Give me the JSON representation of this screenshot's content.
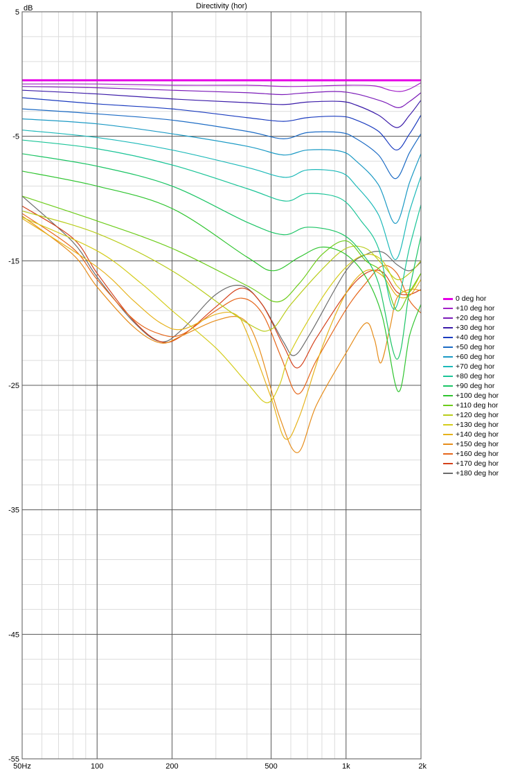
{
  "chart_data": {
    "type": "line",
    "title": "Directivity (hor)",
    "ylabel": "dB",
    "xlabel": "",
    "xscale": "log",
    "xlim": [
      50,
      2000
    ],
    "ylim": [
      -55,
      5
    ],
    "xticks": [
      {
        "value": 50,
        "label": "50Hz"
      },
      {
        "value": 100,
        "label": "100"
      },
      {
        "value": 200,
        "label": "200"
      },
      {
        "value": 500,
        "label": "500"
      },
      {
        "value": 1000,
        "label": "1k"
      },
      {
        "value": 2000,
        "label": "2k"
      }
    ],
    "yticks": [
      {
        "value": 5,
        "label": "5"
      },
      {
        "value": -5,
        "label": "-5"
      },
      {
        "value": -15,
        "label": "-15"
      },
      {
        "value": -25,
        "label": "-25"
      },
      {
        "value": -35,
        "label": "-35"
      },
      {
        "value": -45,
        "label": "-45"
      },
      {
        "value": -55,
        "label": "-55"
      }
    ],
    "grid": true,
    "legend_position": "right",
    "series": [
      {
        "name": "0 deg hor",
        "color": "#e600e6",
        "bold": true,
        "points": [
          [
            50,
            -0.5
          ],
          [
            2000,
            -0.5
          ]
        ]
      },
      {
        "name": "+10 deg hor",
        "color": "#a11fc7",
        "points": [
          [
            50,
            -0.8
          ],
          [
            100,
            -0.8
          ],
          [
            200,
            -0.9
          ],
          [
            400,
            -0.9
          ],
          [
            600,
            -1.0
          ],
          [
            1000,
            -0.9
          ],
          [
            1300,
            -0.95
          ],
          [
            1500,
            -1.3
          ],
          [
            1650,
            -1.4
          ],
          [
            1800,
            -1.2
          ],
          [
            2000,
            -0.7
          ]
        ]
      },
      {
        "name": "+20 deg hor",
        "color": "#7a1ab8",
        "points": [
          [
            50,
            -1.0
          ],
          [
            100,
            -1.1
          ],
          [
            200,
            -1.3
          ],
          [
            400,
            -1.5
          ],
          [
            550,
            -1.65
          ],
          [
            650,
            -1.55
          ],
          [
            900,
            -1.4
          ],
          [
            1100,
            -1.6
          ],
          [
            1400,
            -2.2
          ],
          [
            1620,
            -2.7
          ],
          [
            1800,
            -2.2
          ],
          [
            2000,
            -1.5
          ]
        ]
      },
      {
        "name": "+30 deg hor",
        "color": "#3a1aa8",
        "points": [
          [
            50,
            -1.3
          ],
          [
            100,
            -1.6
          ],
          [
            200,
            -2.0
          ],
          [
            400,
            -2.3
          ],
          [
            560,
            -2.45
          ],
          [
            700,
            -2.25
          ],
          [
            950,
            -2.2
          ],
          [
            1100,
            -2.5
          ],
          [
            1350,
            -3.3
          ],
          [
            1600,
            -4.3
          ],
          [
            1800,
            -3.3
          ],
          [
            2000,
            -2.1
          ]
        ]
      },
      {
        "name": "+40 deg hor",
        "color": "#1a3bbf",
        "points": [
          [
            50,
            -1.9
          ],
          [
            100,
            -2.4
          ],
          [
            200,
            -2.8
          ],
          [
            400,
            -3.5
          ],
          [
            560,
            -3.8
          ],
          [
            700,
            -3.5
          ],
          [
            950,
            -3.4
          ],
          [
            1100,
            -3.7
          ],
          [
            1350,
            -4.6
          ],
          [
            1590,
            -6.1
          ],
          [
            1800,
            -4.8
          ],
          [
            2000,
            -3.3
          ]
        ]
      },
      {
        "name": "+50 deg hor",
        "color": "#1a6ac4",
        "points": [
          [
            50,
            -2.8
          ],
          [
            100,
            -3.2
          ],
          [
            200,
            -3.7
          ],
          [
            400,
            -4.6
          ],
          [
            560,
            -5.2
          ],
          [
            700,
            -4.7
          ],
          [
            950,
            -4.7
          ],
          [
            1100,
            -5.2
          ],
          [
            1350,
            -6.5
          ],
          [
            1580,
            -8.4
          ],
          [
            1800,
            -6.3
          ],
          [
            2000,
            -4.8
          ]
        ]
      },
      {
        "name": "+60 deg hor",
        "color": "#1a99c4",
        "points": [
          [
            50,
            -3.6
          ],
          [
            100,
            -4.0
          ],
          [
            200,
            -4.8
          ],
          [
            400,
            -5.8
          ],
          [
            560,
            -6.5
          ],
          [
            700,
            -6.1
          ],
          [
            950,
            -6.2
          ],
          [
            1100,
            -7.0
          ],
          [
            1350,
            -8.9
          ],
          [
            1580,
            -12.0
          ],
          [
            1800,
            -8.7
          ],
          [
            2000,
            -6.4
          ]
        ]
      },
      {
        "name": "+70 deg hor",
        "color": "#1ab8b8",
        "points": [
          [
            50,
            -4.5
          ],
          [
            100,
            -5.1
          ],
          [
            200,
            -6.1
          ],
          [
            400,
            -7.5
          ],
          [
            570,
            -8.3
          ],
          [
            700,
            -7.7
          ],
          [
            950,
            -7.9
          ],
          [
            1100,
            -9.0
          ],
          [
            1350,
            -11.3
          ],
          [
            1580,
            -14.9
          ],
          [
            1800,
            -11.0
          ],
          [
            2000,
            -8.2
          ]
        ]
      },
      {
        "name": "+80 deg hor",
        "color": "#1ac497",
        "points": [
          [
            50,
            -5.3
          ],
          [
            100,
            -6.0
          ],
          [
            200,
            -7.3
          ],
          [
            400,
            -9.2
          ],
          [
            570,
            -10.2
          ],
          [
            700,
            -9.6
          ],
          [
            950,
            -10.0
          ],
          [
            1150,
            -11.8
          ],
          [
            1350,
            -14.0
          ],
          [
            1560,
            -18.9
          ],
          [
            1800,
            -13.9
          ],
          [
            2000,
            -10.5
          ]
        ]
      },
      {
        "name": "+90 deg hor",
        "color": "#1ac464",
        "points": [
          [
            50,
            -6.4
          ],
          [
            100,
            -7.4
          ],
          [
            200,
            -9.0
          ],
          [
            400,
            -11.9
          ],
          [
            560,
            -12.9
          ],
          [
            700,
            -12.3
          ],
          [
            950,
            -12.8
          ],
          [
            1150,
            -14.3
          ],
          [
            1350,
            -16.8
          ],
          [
            1600,
            -22.9
          ],
          [
            1800,
            -17.3
          ],
          [
            2000,
            -13.0
          ]
        ]
      },
      {
        "name": "+100 deg hor",
        "color": "#2ec42e",
        "points": [
          [
            50,
            -7.8
          ],
          [
            100,
            -9.0
          ],
          [
            200,
            -10.8
          ],
          [
            400,
            -14.7
          ],
          [
            510,
            -15.8
          ],
          [
            650,
            -14.7
          ],
          [
            800,
            -13.9
          ],
          [
            1000,
            -14.5
          ],
          [
            1200,
            -16.3
          ],
          [
            1400,
            -19.5
          ],
          [
            1620,
            -25.5
          ],
          [
            1800,
            -21.0
          ],
          [
            2000,
            -18.5
          ]
        ]
      },
      {
        "name": "+110 deg hor",
        "color": "#6ccc1a",
        "points": [
          [
            50,
            -9.8
          ],
          [
            100,
            -11.8
          ],
          [
            200,
            -14.0
          ],
          [
            400,
            -17.0
          ],
          [
            530,
            -18.3
          ],
          [
            650,
            -16.8
          ],
          [
            800,
            -14.5
          ],
          [
            1000,
            -13.4
          ],
          [
            1200,
            -15.0
          ],
          [
            1400,
            -16.0
          ],
          [
            1600,
            -19.0
          ],
          [
            1800,
            -17.5
          ],
          [
            2000,
            -16.0
          ]
        ]
      },
      {
        "name": "+120 deg hor",
        "color": "#b8cc1a",
        "points": [
          [
            50,
            -11.0
          ],
          [
            100,
            -12.8
          ],
          [
            200,
            -15.8
          ],
          [
            400,
            -20.0
          ],
          [
            500,
            -20.5
          ],
          [
            600,
            -18.5
          ],
          [
            800,
            -15.7
          ],
          [
            1000,
            -14.0
          ],
          [
            1200,
            -14.0
          ],
          [
            1400,
            -15.3
          ],
          [
            1600,
            -16.5
          ],
          [
            1800,
            -16.0
          ],
          [
            2000,
            -15.0
          ]
        ]
      },
      {
        "name": "+130 deg hor",
        "color": "#d4cc1a",
        "points": [
          [
            50,
            -11.5
          ],
          [
            100,
            -14.2
          ],
          [
            150,
            -16.8
          ],
          [
            200,
            -19.0
          ],
          [
            300,
            -22.0
          ],
          [
            400,
            -24.8
          ],
          [
            480,
            -26.4
          ],
          [
            540,
            -25.0
          ],
          [
            600,
            -22.3
          ],
          [
            800,
            -18.0
          ],
          [
            1000,
            -15.5
          ],
          [
            1200,
            -14.5
          ],
          [
            1400,
            -15.0
          ],
          [
            1600,
            -17.0
          ],
          [
            1800,
            -17.5
          ],
          [
            2000,
            -16.0
          ]
        ]
      },
      {
        "name": "+140 deg hor",
        "color": "#e6b21a",
        "points": [
          [
            50,
            -11.6
          ],
          [
            100,
            -15.5
          ],
          [
            140,
            -18.2
          ],
          [
            180,
            -20.0
          ],
          [
            220,
            -20.5
          ],
          [
            300,
            -19.3
          ],
          [
            360,
            -19.3
          ],
          [
            400,
            -20.8
          ],
          [
            500,
            -26.0
          ],
          [
            570,
            -29.3
          ],
          [
            650,
            -27.5
          ],
          [
            800,
            -22.0
          ],
          [
            1000,
            -17.6
          ],
          [
            1200,
            -15.8
          ],
          [
            1400,
            -16.2
          ],
          [
            1600,
            -17.8
          ],
          [
            1800,
            -17.8
          ],
          [
            2000,
            -16.5
          ]
        ]
      },
      {
        "name": "+150 deg hor",
        "color": "#e68c1a",
        "points": [
          [
            50,
            -11.4
          ],
          [
            80,
            -14.5
          ],
          [
            100,
            -17.1
          ],
          [
            140,
            -20.3
          ],
          [
            180,
            -21.6
          ],
          [
            220,
            -21.0
          ],
          [
            300,
            -19.8
          ],
          [
            380,
            -19.6
          ],
          [
            440,
            -21.6
          ],
          [
            540,
            -27.5
          ],
          [
            640,
            -30.4
          ],
          [
            760,
            -26.6
          ],
          [
            1000,
            -22.4
          ],
          [
            1200,
            -20.0
          ],
          [
            1300,
            -21.3
          ],
          [
            1380,
            -23.2
          ],
          [
            1500,
            -20.4
          ],
          [
            1600,
            -18.0
          ],
          [
            1800,
            -17.3
          ],
          [
            2000,
            -17.4
          ]
        ]
      },
      {
        "name": "+160 deg hor",
        "color": "#e6661a",
        "points": [
          [
            50,
            -11.2
          ],
          [
            80,
            -14.0
          ],
          [
            100,
            -16.5
          ],
          [
            140,
            -19.7
          ],
          [
            180,
            -20.9
          ],
          [
            220,
            -20.9
          ],
          [
            300,
            -19.0
          ],
          [
            380,
            -18.0
          ],
          [
            460,
            -19.2
          ],
          [
            550,
            -22.8
          ],
          [
            640,
            -25.7
          ],
          [
            760,
            -23.0
          ],
          [
            1000,
            -18.9
          ],
          [
            1200,
            -16.8
          ],
          [
            1400,
            -15.4
          ],
          [
            1600,
            -16.0
          ],
          [
            1800,
            -18.2
          ],
          [
            2000,
            -19.2
          ]
        ]
      },
      {
        "name": "+170 deg hor",
        "color": "#d4401a",
        "points": [
          [
            50,
            -10.6
          ],
          [
            80,
            -13.2
          ],
          [
            100,
            -16.0
          ],
          [
            140,
            -19.8
          ],
          [
            180,
            -21.5
          ],
          [
            220,
            -21.0
          ],
          [
            300,
            -18.7
          ],
          [
            380,
            -17.2
          ],
          [
            460,
            -18.5
          ],
          [
            560,
            -21.8
          ],
          [
            640,
            -23.6
          ],
          [
            760,
            -21.2
          ],
          [
            1000,
            -17.6
          ],
          [
            1200,
            -16.0
          ],
          [
            1400,
            -15.9
          ],
          [
            1600,
            -17.5
          ],
          [
            1800,
            -17.7
          ],
          [
            2000,
            -17.3
          ]
        ]
      },
      {
        "name": "+180 deg hor",
        "color": "#6b6b6b",
        "points": [
          [
            50,
            -9.8
          ],
          [
            80,
            -13.5
          ],
          [
            100,
            -16.3
          ],
          [
            140,
            -19.9
          ],
          [
            180,
            -21.5
          ],
          [
            220,
            -20.5
          ],
          [
            300,
            -17.7
          ],
          [
            380,
            -17.0
          ],
          [
            460,
            -18.5
          ],
          [
            560,
            -21.5
          ],
          [
            620,
            -22.6
          ],
          [
            720,
            -20.8
          ],
          [
            1000,
            -15.8
          ],
          [
            1200,
            -14.5
          ],
          [
            1400,
            -14.3
          ],
          [
            1600,
            -15.3
          ],
          [
            1800,
            -15.8
          ],
          [
            2000,
            -15.1
          ]
        ]
      }
    ]
  }
}
